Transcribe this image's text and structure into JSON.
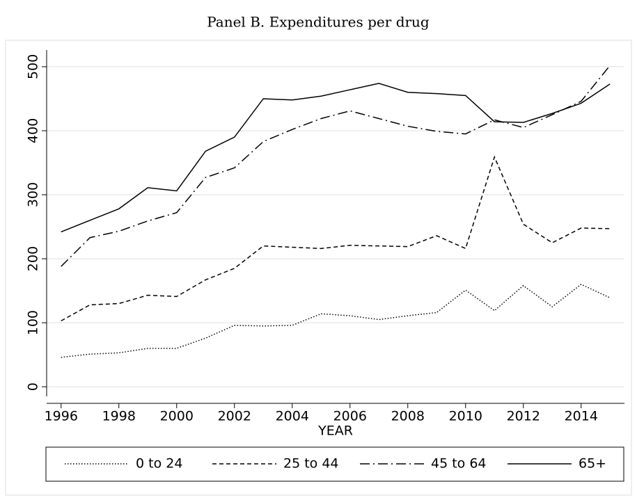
{
  "chart_data": {
    "type": "line",
    "title": "Panel B. Expenditures per drug",
    "x_label": "YEAR",
    "x": [
      1996,
      1997,
      1998,
      1999,
      2000,
      2001,
      2002,
      2003,
      2004,
      2005,
      2006,
      2007,
      2008,
      2009,
      2010,
      2011,
      2012,
      2013,
      2014,
      2015
    ],
    "xlim": [
      1995.5,
      2015.5
    ],
    "xticks": [
      1996,
      1998,
      2000,
      2002,
      2004,
      2006,
      2008,
      2010,
      2012,
      2014
    ],
    "ylim": [
      -15,
      526
    ],
    "yticks": [
      0,
      100,
      200,
      300,
      400,
      500
    ],
    "grid": true,
    "legend": "bottom",
    "series": [
      {
        "name": "0 to 24",
        "color": "#000000",
        "dash": "dotted",
        "values": [
          46,
          51,
          53,
          60,
          60,
          76,
          96,
          95,
          96,
          114,
          111,
          105,
          111,
          116,
          151,
          119,
          158,
          125,
          160,
          139
        ]
      },
      {
        "name": "25 to 44",
        "color": "#000000",
        "dash": "dashed",
        "values": [
          103,
          128,
          130,
          143,
          141,
          167,
          185,
          220,
          218,
          216,
          221,
          220,
          219,
          236,
          216,
          359,
          254,
          225,
          248,
          247
        ]
      },
      {
        "name": "45 to 64",
        "color": "#000000",
        "dash": "dashdot",
        "values": [
          188,
          233,
          243,
          259,
          272,
          327,
          342,
          383,
          402,
          419,
          431,
          419,
          407,
          399,
          395,
          417,
          405,
          425,
          446,
          502
        ]
      },
      {
        "name": "65+",
        "color": "#000000",
        "dash": "solid",
        "values": [
          242,
          260,
          278,
          311,
          306,
          368,
          390,
          450,
          448,
          454,
          464,
          474,
          460,
          458,
          455,
          414,
          413,
          427,
          443,
          473
        ]
      }
    ]
  }
}
